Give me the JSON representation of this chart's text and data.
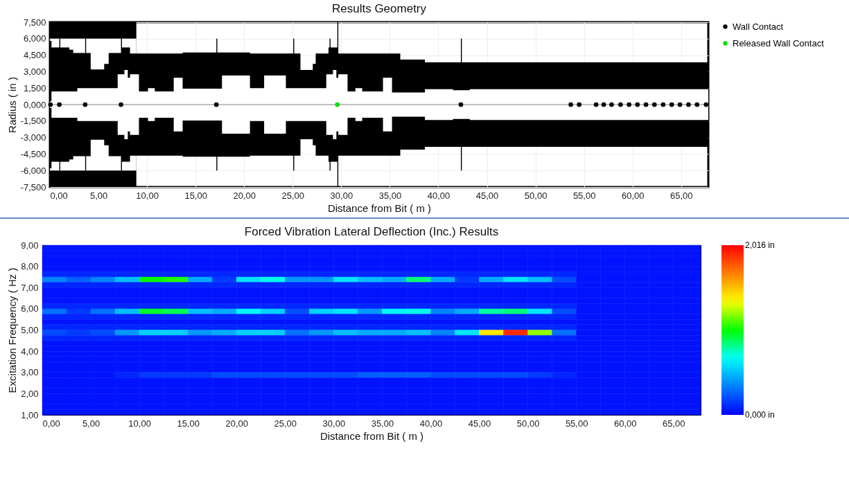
{
  "chart_data": [
    {
      "type": "area",
      "title": "Results Geometry",
      "xlabel": "Distance from Bit ( m )",
      "ylabel": "Radius ( in )",
      "xlim": [
        0,
        67.8
      ],
      "xticks": [
        {
          "value": 0,
          "label": "0,00"
        },
        {
          "value": 5,
          "label": "5,00"
        },
        {
          "value": 10,
          "label": "10,00"
        },
        {
          "value": 15,
          "label": "15,00"
        },
        {
          "value": 20,
          "label": "20,00"
        },
        {
          "value": 25,
          "label": "25,00"
        },
        {
          "value": 30,
          "label": "30,00"
        },
        {
          "value": 35,
          "label": "35,00"
        },
        {
          "value": 40,
          "label": "40,00"
        },
        {
          "value": 45,
          "label": "45,00"
        },
        {
          "value": 50,
          "label": "50,00"
        },
        {
          "value": 55,
          "label": "55,00"
        },
        {
          "value": 60,
          "label": "60,00"
        },
        {
          "value": 65,
          "label": "65,00"
        }
      ],
      "ylim": [
        -7.5,
        7.5
      ],
      "yticks": [
        {
          "value": 7.5,
          "label": "7,500"
        },
        {
          "value": 6,
          "label": "6,000"
        },
        {
          "value": 4.5,
          "label": "4,500"
        },
        {
          "value": 3,
          "label": "3,000"
        },
        {
          "value": 1.5,
          "label": "1,500"
        },
        {
          "value": 0,
          "label": "0,000"
        },
        {
          "value": -1.5,
          "label": "-1,500"
        },
        {
          "value": -3,
          "label": "-3,000"
        },
        {
          "value": -4.5,
          "label": "-4,500"
        },
        {
          "value": -6,
          "label": "-6,000"
        },
        {
          "value": -7.5,
          "label": "-7,500"
        }
      ],
      "grid": true,
      "legend": "right",
      "ref_lines": [
        {
          "axis": "y",
          "value": 0,
          "color": "#808080"
        }
      ],
      "series": [
        {
          "type": "area",
          "color": "#000000",
          "x": [
            0,
            8.9
          ],
          "values": [
            7.5,
            7.5
          ]
        },
        {
          "type": "area",
          "color": "#000000",
          "x": [
            0,
            8.9
          ],
          "values": [
            -7.5,
            -7.5
          ]
        },
        {
          "type": "area",
          "color": "#ffffff",
          "x": [
            0,
            8.9
          ],
          "values": [
            6.0,
            6.0
          ]
        },
        {
          "type": "area",
          "color": "#ffffff",
          "x": [
            0,
            8.9
          ],
          "values": [
            -6.0,
            -6.0
          ]
        },
        {
          "type": "area",
          "color": "#000000",
          "x": [
            0,
            0.16,
            0.97,
            1.07,
            2.0,
            2.4,
            2.82,
            3.63,
            3.73,
            4.2,
            5.59,
            6.05,
            6.98,
            7.32,
            7.42,
            7.67,
            8.02,
            8.25,
            9.17,
            10.1,
            10.8,
            12.75,
            13.67,
            17.14,
            17.24,
            17.72,
            20.6,
            22.06,
            24.3,
            25.06,
            25.16,
            25.8,
            27.07,
            27.37,
            28.46,
            28.69,
            28.8,
            28.9,
            29.15,
            29.5,
            29.6,
            29.7,
            30.65,
            31.46,
            32.16,
            34.3,
            35.23,
            36.08,
            38.62,
            41.5,
            42.32,
            42.42,
            43.24,
            67.8
          ],
          "values": [
            5.8,
            5.2,
            6.0,
            5.2,
            5.0,
            4.7,
            4.7,
            6.0,
            4.7,
            3.2,
            3.7,
            4.7,
            4.7,
            6.0,
            5.2,
            5.2,
            5.2,
            4.65,
            4.65,
            4.65,
            4.65,
            4.65,
            4.75,
            6.0,
            4.75,
            4.75,
            4.65,
            4.65,
            4.65,
            6.0,
            4.65,
            3.15,
            3.7,
            4.65,
            4.65,
            5.2,
            6.0,
            5.2,
            5.2,
            5.2,
            7.5,
            4.65,
            4.65,
            4.65,
            4.65,
            4.65,
            4.65,
            4.1,
            3.85,
            3.85,
            6.0,
            3.85,
            3.85,
            3.85
          ]
        },
        {
          "type": "area",
          "color": "#000000",
          "x": [
            0,
            0.16,
            0.97,
            1.07,
            2.0,
            2.4,
            2.82,
            3.63,
            3.73,
            4.2,
            5.59,
            6.05,
            6.98,
            7.32,
            7.42,
            7.67,
            8.02,
            8.25,
            9.17,
            10.1,
            10.8,
            12.75,
            13.67,
            17.14,
            17.24,
            17.72,
            20.6,
            22.06,
            24.3,
            25.06,
            25.16,
            25.8,
            27.07,
            27.37,
            28.46,
            28.69,
            28.8,
            28.9,
            29.15,
            29.5,
            29.6,
            29.7,
            30.65,
            31.46,
            32.16,
            34.3,
            35.23,
            36.08,
            38.62,
            41.5,
            42.32,
            42.42,
            43.24,
            67.8
          ],
          "values": [
            -5.8,
            -5.2,
            -6.0,
            -5.2,
            -5.0,
            -4.7,
            -4.7,
            -6.0,
            -4.7,
            -3.2,
            -3.7,
            -4.7,
            -4.7,
            -6.0,
            -5.2,
            -5.2,
            -5.2,
            -4.65,
            -4.65,
            -4.65,
            -4.65,
            -4.65,
            -4.75,
            -6.0,
            -4.75,
            -4.75,
            -4.65,
            -4.65,
            -4.65,
            -6.0,
            -4.65,
            -3.15,
            -3.7,
            -4.65,
            -4.65,
            -5.2,
            -6.0,
            -5.2,
            -5.2,
            -5.2,
            -7.5,
            -4.65,
            -4.65,
            -4.65,
            -4.65,
            -4.65,
            -4.65,
            -4.1,
            -3.85,
            -3.85,
            -6.0,
            -3.85,
            -3.85,
            -3.85
          ]
        },
        {
          "type": "area",
          "color": "#ffffff",
          "x": [
            0,
            0.16,
            0.97,
            1.07,
            2.0,
            2.4,
            2.82,
            3.63,
            3.73,
            4.2,
            5.59,
            6.05,
            6.98,
            7.32,
            7.42,
            7.67,
            8.02,
            8.25,
            9.17,
            10.1,
            10.8,
            12.75,
            13.67,
            17.14,
            17.24,
            17.72,
            20.6,
            22.06,
            24.3,
            25.06,
            25.16,
            25.8,
            27.07,
            27.37,
            28.46,
            28.69,
            28.8,
            28.9,
            29.15,
            29.5,
            29.6,
            29.7,
            30.65,
            31.46,
            32.16,
            34.3,
            35.23,
            36.08,
            38.62,
            41.5,
            42.32,
            42.42,
            43.24,
            67.8
          ],
          "values": [
            0.3,
            1.2,
            1.2,
            1.2,
            1.2,
            1.2,
            1.5,
            1.5,
            1.5,
            1.5,
            1.5,
            1.5,
            2.75,
            2.75,
            2.75,
            3.15,
            2.45,
            2.75,
            1.2,
            1.5,
            1.2,
            2.45,
            1.45,
            1.45,
            1.45,
            2.65,
            1.5,
            2.65,
            1.5,
            1.5,
            1.5,
            1.5,
            1.5,
            1.5,
            2.75,
            2.75,
            2.75,
            2.75,
            3.15,
            2.45,
            2.45,
            2.75,
            1.2,
            1.5,
            1.2,
            2.45,
            1.1,
            1.1,
            1.4,
            1.3,
            1.3,
            1.3,
            1.4,
            1.4
          ]
        },
        {
          "type": "area",
          "color": "#ffffff",
          "x": [
            0,
            0.16,
            0.97,
            1.07,
            2.0,
            2.4,
            2.82,
            3.63,
            3.73,
            4.2,
            5.59,
            6.05,
            6.98,
            7.32,
            7.42,
            7.67,
            8.02,
            8.25,
            9.17,
            10.1,
            10.8,
            12.75,
            13.67,
            17.14,
            17.24,
            17.72,
            20.6,
            22.06,
            24.3,
            25.06,
            25.16,
            25.8,
            27.07,
            27.37,
            28.46,
            28.69,
            28.8,
            28.9,
            29.15,
            29.5,
            29.6,
            29.7,
            30.65,
            31.46,
            32.16,
            34.3,
            35.23,
            36.08,
            38.62,
            41.5,
            42.32,
            42.42,
            43.24,
            67.8
          ],
          "values": [
            -0.3,
            -1.2,
            -1.2,
            -1.2,
            -1.2,
            -1.2,
            -1.5,
            -1.5,
            -1.5,
            -1.5,
            -1.5,
            -1.5,
            -2.75,
            -2.75,
            -2.75,
            -3.15,
            -2.45,
            -2.75,
            -1.2,
            -1.5,
            -1.2,
            -2.45,
            -1.45,
            -1.45,
            -1.45,
            -2.65,
            -1.5,
            -2.65,
            -1.5,
            -1.5,
            -1.5,
            -1.5,
            -1.5,
            -1.5,
            -2.75,
            -2.75,
            -2.75,
            -2.75,
            -3.15,
            -2.45,
            -2.45,
            -2.75,
            -1.2,
            -1.5,
            -1.2,
            -2.45,
            -1.1,
            -1.1,
            -1.4,
            -1.3,
            -1.3,
            -1.3,
            -1.4,
            -1.4
          ]
        },
        {
          "type": "scatter",
          "name": "Wall Contact",
          "color": "#000000",
          "marker": "circle",
          "x": [
            0.06,
            0.97,
            3.63,
            7.32,
            17.14,
            42.32,
            53.64,
            54.5,
            56.25,
            57.03,
            57.84,
            58.76,
            59.64,
            60.5,
            61.38,
            62.25,
            63.15,
            64.03,
            64.88,
            65.76,
            66.64,
            67.57
          ],
          "values": [
            0,
            0,
            0,
            0,
            0,
            0,
            0,
            0,
            0,
            0,
            0,
            0,
            0,
            0,
            0,
            0,
            0,
            0,
            0,
            0,
            0,
            0
          ]
        },
        {
          "type": "scatter",
          "name": "Released Wall Contact",
          "color": "#00e000",
          "marker": "circle",
          "x": [
            29.6
          ],
          "values": [
            0
          ]
        }
      ]
    },
    {
      "type": "heatmap",
      "title": "Forced Vibration Lateral Deflection (Inc.) Results",
      "xlabel": "Distance from Bit ( m )",
      "ylabel": "Excitation Frequency ( Hz )",
      "xlim": [
        0,
        67.8
      ],
      "xticks": [
        {
          "value": 0,
          "label": "0,00"
        },
        {
          "value": 5,
          "label": "5,00"
        },
        {
          "value": 10,
          "label": "10,00"
        },
        {
          "value": 15,
          "label": "15,00"
        },
        {
          "value": 20,
          "label": "20,00"
        },
        {
          "value": 25,
          "label": "25,00"
        },
        {
          "value": 30,
          "label": "30,00"
        },
        {
          "value": 35,
          "label": "35,00"
        },
        {
          "value": 40,
          "label": "40,00"
        },
        {
          "value": 45,
          "label": "45,00"
        },
        {
          "value": 50,
          "label": "50,00"
        },
        {
          "value": 55,
          "label": "55,00"
        },
        {
          "value": 60,
          "label": "60,00"
        },
        {
          "value": 65,
          "label": "65,00"
        }
      ],
      "ylim": [
        1,
        9
      ],
      "yticks": [
        {
          "value": 1,
          "label": "1,00"
        },
        {
          "value": 2,
          "label": "2,00"
        },
        {
          "value": 3,
          "label": "3,00"
        },
        {
          "value": 4,
          "label": "4,00"
        },
        {
          "value": 5,
          "label": "5,00"
        },
        {
          "value": 6,
          "label": "6,00"
        },
        {
          "value": 7,
          "label": "7,00"
        },
        {
          "value": 8,
          "label": "8,00"
        },
        {
          "value": 9,
          "label": "9,00"
        }
      ],
      "clim": [
        0,
        2.016
      ],
      "cticks": [
        {
          "value": 0,
          "label": "0,000 in"
        },
        {
          "value": 2.016,
          "label": "2,016 in"
        }
      ],
      "x": [
        1.25,
        3.75,
        6.25,
        8.75,
        11.25,
        13.75,
        16.25,
        18.75,
        21.25,
        23.75,
        26.25,
        28.75,
        31.25,
        33.75,
        36.25,
        38.75,
        41.25,
        43.75,
        46.25,
        48.75,
        51.25,
        53.75,
        56.25,
        58.75,
        61.25,
        63.75,
        66.25
      ],
      "y": [
        8.875,
        8.625,
        8.375,
        8.125,
        7.875,
        7.625,
        7.375,
        7.125,
        6.875,
        6.625,
        6.375,
        6.125,
        5.875,
        5.625,
        5.375,
        5.125,
        4.875,
        4.625,
        4.375,
        4.125,
        3.875,
        3.625,
        3.375,
        3.125,
        2.875,
        2.625,
        2.375,
        2.125,
        1.875,
        1.625,
        1.375,
        1.125
      ],
      "cells": [
        [
          0.05,
          0.05,
          0.05,
          0.05,
          0.05,
          0.05,
          0.05,
          0.05,
          0.05,
          0.05,
          0.05,
          0.05,
          0.05,
          0.05,
          0.05,
          0.05,
          0.05,
          0.05,
          0.05,
          0.05,
          0.05,
          0.05,
          0.05,
          0.05,
          0.05,
          0.05,
          0.05
        ],
        [
          0.05,
          0.05,
          0.05,
          0.05,
          0.05,
          0.05,
          0.05,
          0.05,
          0.05,
          0.05,
          0.05,
          0.05,
          0.05,
          0.05,
          0.05,
          0.05,
          0.05,
          0.05,
          0.05,
          0.05,
          0.05,
          0.05,
          0.05,
          0.05,
          0.05,
          0.05,
          0.05
        ],
        [
          0.05,
          0.05,
          0.05,
          0.05,
          0.05,
          0.05,
          0.05,
          0.05,
          0.05,
          0.05,
          0.05,
          0.05,
          0.05,
          0.05,
          0.05,
          0.05,
          0.05,
          0.05,
          0.05,
          0.05,
          0.05,
          0.05,
          0.05,
          0.05,
          0.05,
          0.05,
          0.05
        ],
        [
          0.05,
          0.05,
          0.05,
          0.05,
          0.05,
          0.05,
          0.05,
          0.05,
          0.05,
          0.05,
          0.05,
          0.05,
          0.05,
          0.05,
          0.05,
          0.05,
          0.05,
          0.05,
          0.05,
          0.05,
          0.05,
          0.05,
          0.05,
          0.05,
          0.05,
          0.05,
          0.05
        ],
        [
          0.05,
          0.05,
          0.05,
          0.05,
          0.05,
          0.05,
          0.05,
          0.05,
          0.05,
          0.05,
          0.05,
          0.05,
          0.05,
          0.05,
          0.05,
          0.05,
          0.05,
          0.05,
          0.05,
          0.05,
          0.05,
          0.05,
          0.05,
          0.05,
          0.05,
          0.05,
          0.05
        ],
        [
          0.1,
          0.1,
          0.1,
          0.1,
          0.1,
          0.1,
          0.1,
          0.1,
          0.1,
          0.1,
          0.1,
          0.1,
          0.1,
          0.1,
          0.1,
          0.1,
          0.1,
          0.1,
          0.1,
          0.1,
          0.1,
          0.1,
          0.05,
          0.05,
          0.05,
          0.05,
          0.05
        ],
        [
          0.35,
          0.25,
          0.35,
          0.5,
          1.0,
          1.05,
          0.45,
          0.15,
          0.6,
          0.7,
          0.4,
          0.4,
          0.6,
          0.5,
          0.45,
          0.85,
          0.45,
          0.15,
          0.45,
          0.6,
          0.5,
          0.2,
          0.05,
          0.05,
          0.05,
          0.05,
          0.05
        ],
        [
          0.1,
          0.1,
          0.1,
          0.1,
          0.1,
          0.1,
          0.1,
          0.1,
          0.1,
          0.1,
          0.1,
          0.1,
          0.1,
          0.1,
          0.1,
          0.1,
          0.1,
          0.1,
          0.1,
          0.1,
          0.1,
          0.1,
          0.05,
          0.05,
          0.05,
          0.05,
          0.05
        ],
        [
          0.05,
          0.05,
          0.05,
          0.05,
          0.05,
          0.05,
          0.05,
          0.05,
          0.05,
          0.05,
          0.05,
          0.05,
          0.05,
          0.05,
          0.05,
          0.05,
          0.05,
          0.05,
          0.05,
          0.05,
          0.05,
          0.05,
          0.05,
          0.05,
          0.05,
          0.05,
          0.05
        ],
        [
          0.05,
          0.05,
          0.05,
          0.05,
          0.05,
          0.05,
          0.05,
          0.05,
          0.05,
          0.05,
          0.05,
          0.05,
          0.05,
          0.05,
          0.05,
          0.05,
          0.05,
          0.05,
          0.05,
          0.05,
          0.05,
          0.05,
          0.05,
          0.05,
          0.05,
          0.05,
          0.05
        ],
        [
          0.05,
          0.05,
          0.05,
          0.05,
          0.05,
          0.05,
          0.05,
          0.05,
          0.05,
          0.05,
          0.05,
          0.05,
          0.05,
          0.05,
          0.05,
          0.05,
          0.05,
          0.05,
          0.05,
          0.05,
          0.05,
          0.05,
          0.05,
          0.05,
          0.05,
          0.05,
          0.05
        ],
        [
          0.1,
          0.1,
          0.1,
          0.1,
          0.1,
          0.1,
          0.1,
          0.1,
          0.1,
          0.1,
          0.1,
          0.1,
          0.1,
          0.1,
          0.1,
          0.1,
          0.1,
          0.1,
          0.1,
          0.1,
          0.1,
          0.1,
          0.05,
          0.05,
          0.05,
          0.05,
          0.05
        ],
        [
          0.3,
          0.15,
          0.3,
          0.5,
          0.95,
          0.9,
          0.5,
          0.45,
          0.65,
          0.55,
          0.2,
          0.55,
          0.6,
          0.4,
          0.65,
          0.7,
          0.35,
          0.45,
          0.8,
          0.85,
          0.6,
          0.2,
          0.05,
          0.05,
          0.05,
          0.05,
          0.05
        ],
        [
          0.1,
          0.1,
          0.1,
          0.1,
          0.1,
          0.1,
          0.1,
          0.1,
          0.1,
          0.1,
          0.1,
          0.1,
          0.1,
          0.1,
          0.1,
          0.1,
          0.1,
          0.1,
          0.1,
          0.1,
          0.1,
          0.1,
          0.05,
          0.05,
          0.05,
          0.05,
          0.05
        ],
        [
          0.05,
          0.05,
          0.05,
          0.05,
          0.05,
          0.05,
          0.05,
          0.05,
          0.05,
          0.05,
          0.05,
          0.05,
          0.05,
          0.05,
          0.05,
          0.05,
          0.05,
          0.05,
          0.05,
          0.05,
          0.05,
          0.05,
          0.05,
          0.05,
          0.05,
          0.05,
          0.05
        ],
        [
          0.1,
          0.1,
          0.1,
          0.1,
          0.1,
          0.1,
          0.1,
          0.1,
          0.1,
          0.1,
          0.1,
          0.1,
          0.1,
          0.1,
          0.1,
          0.1,
          0.1,
          0.1,
          0.1,
          0.1,
          0.1,
          0.1,
          0.05,
          0.05,
          0.05,
          0.05,
          0.05
        ],
        [
          0.2,
          0.15,
          0.2,
          0.4,
          0.55,
          0.55,
          0.4,
          0.45,
          0.55,
          0.55,
          0.3,
          0.4,
          0.5,
          0.45,
          0.45,
          0.5,
          0.35,
          0.6,
          1.4,
          1.9,
          1.2,
          0.3,
          0.05,
          0.05,
          0.05,
          0.05,
          0.05
        ],
        [
          0.1,
          0.1,
          0.1,
          0.1,
          0.1,
          0.1,
          0.1,
          0.1,
          0.1,
          0.1,
          0.1,
          0.1,
          0.1,
          0.1,
          0.1,
          0.1,
          0.1,
          0.1,
          0.1,
          0.1,
          0.1,
          0.1,
          0.05,
          0.05,
          0.05,
          0.05,
          0.05
        ],
        [
          0.05,
          0.05,
          0.05,
          0.05,
          0.05,
          0.05,
          0.05,
          0.05,
          0.05,
          0.05,
          0.05,
          0.05,
          0.05,
          0.05,
          0.05,
          0.05,
          0.05,
          0.05,
          0.05,
          0.05,
          0.05,
          0.05,
          0.05,
          0.05,
          0.05,
          0.05,
          0.05
        ],
        [
          0.05,
          0.05,
          0.05,
          0.05,
          0.05,
          0.05,
          0.05,
          0.05,
          0.05,
          0.05,
          0.05,
          0.05,
          0.05,
          0.05,
          0.05,
          0.05,
          0.05,
          0.05,
          0.05,
          0.05,
          0.05,
          0.05,
          0.05,
          0.05,
          0.05,
          0.05,
          0.05
        ],
        [
          0.05,
          0.05,
          0.05,
          0.05,
          0.05,
          0.05,
          0.05,
          0.05,
          0.05,
          0.05,
          0.05,
          0.05,
          0.05,
          0.05,
          0.05,
          0.05,
          0.05,
          0.05,
          0.05,
          0.05,
          0.05,
          0.05,
          0.05,
          0.05,
          0.05,
          0.05,
          0.05
        ],
        [
          0.05,
          0.05,
          0.05,
          0.05,
          0.05,
          0.05,
          0.05,
          0.05,
          0.05,
          0.05,
          0.05,
          0.05,
          0.05,
          0.05,
          0.05,
          0.05,
          0.05,
          0.05,
          0.05,
          0.05,
          0.05,
          0.05,
          0.05,
          0.05,
          0.05,
          0.05,
          0.05
        ],
        [
          0.05,
          0.05,
          0.05,
          0.05,
          0.05,
          0.05,
          0.05,
          0.05,
          0.05,
          0.05,
          0.05,
          0.05,
          0.05,
          0.05,
          0.05,
          0.05,
          0.05,
          0.05,
          0.05,
          0.05,
          0.05,
          0.05,
          0.05,
          0.05,
          0.05,
          0.05,
          0.05
        ],
        [
          0.05,
          0.05,
          0.05,
          0.05,
          0.05,
          0.05,
          0.05,
          0.05,
          0.05,
          0.05,
          0.05,
          0.05,
          0.05,
          0.05,
          0.05,
          0.05,
          0.05,
          0.05,
          0.05,
          0.05,
          0.05,
          0.05,
          0.05,
          0.05,
          0.05,
          0.05,
          0.05
        ],
        [
          0.05,
          0.05,
          0.05,
          0.1,
          0.15,
          0.15,
          0.15,
          0.2,
          0.2,
          0.2,
          0.2,
          0.2,
          0.2,
          0.25,
          0.25,
          0.25,
          0.2,
          0.2,
          0.2,
          0.2,
          0.15,
          0.1,
          0.05,
          0.05,
          0.05,
          0.05,
          0.05
        ],
        [
          0.05,
          0.05,
          0.05,
          0.05,
          0.05,
          0.05,
          0.05,
          0.05,
          0.05,
          0.05,
          0.05,
          0.05,
          0.05,
          0.05,
          0.05,
          0.05,
          0.05,
          0.05,
          0.05,
          0.05,
          0.05,
          0.05,
          0.05,
          0.05,
          0.05,
          0.05,
          0.05
        ],
        [
          0.05,
          0.05,
          0.05,
          0.05,
          0.05,
          0.05,
          0.05,
          0.05,
          0.05,
          0.05,
          0.05,
          0.05,
          0.05,
          0.05,
          0.05,
          0.05,
          0.05,
          0.05,
          0.05,
          0.05,
          0.05,
          0.05,
          0.05,
          0.05,
          0.05,
          0.05,
          0.05
        ],
        [
          0.05,
          0.05,
          0.05,
          0.05,
          0.05,
          0.05,
          0.05,
          0.05,
          0.05,
          0.05,
          0.05,
          0.05,
          0.05,
          0.05,
          0.05,
          0.05,
          0.05,
          0.05,
          0.05,
          0.05,
          0.05,
          0.05,
          0.05,
          0.05,
          0.05,
          0.05,
          0.05
        ],
        [
          0.05,
          0.05,
          0.05,
          0.05,
          0.05,
          0.05,
          0.05,
          0.05,
          0.05,
          0.05,
          0.05,
          0.05,
          0.05,
          0.05,
          0.05,
          0.05,
          0.05,
          0.05,
          0.05,
          0.05,
          0.05,
          0.05,
          0.05,
          0.05,
          0.05,
          0.05,
          0.05
        ],
        [
          0.05,
          0.05,
          0.05,
          0.05,
          0.05,
          0.05,
          0.05,
          0.05,
          0.05,
          0.05,
          0.05,
          0.05,
          0.05,
          0.05,
          0.05,
          0.05,
          0.05,
          0.05,
          0.05,
          0.05,
          0.05,
          0.05,
          0.05,
          0.05,
          0.05,
          0.05,
          0.05
        ],
        [
          0.05,
          0.05,
          0.05,
          0.05,
          0.05,
          0.05,
          0.05,
          0.05,
          0.05,
          0.05,
          0.05,
          0.05,
          0.05,
          0.05,
          0.05,
          0.05,
          0.05,
          0.05,
          0.05,
          0.05,
          0.05,
          0.05,
          0.05,
          0.05,
          0.05,
          0.05,
          0.05
        ],
        [
          0.05,
          0.05,
          0.05,
          0.05,
          0.05,
          0.05,
          0.05,
          0.05,
          0.05,
          0.05,
          0.05,
          0.05,
          0.05,
          0.05,
          0.05,
          0.05,
          0.05,
          0.05,
          0.05,
          0.05,
          0.05,
          0.05,
          0.05,
          0.05,
          0.05,
          0.05,
          0.05
        ]
      ]
    }
  ]
}
